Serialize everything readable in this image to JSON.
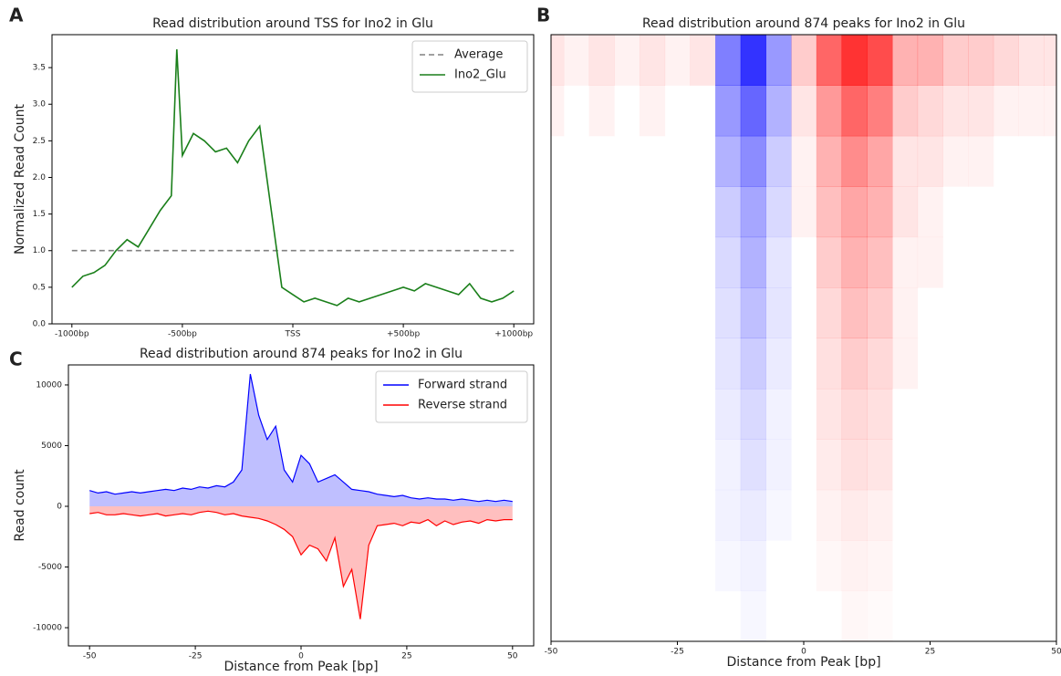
{
  "chart_data": [
    {
      "panel": "A",
      "type": "line",
      "title": "Read distribution around TSS for Ino2 in Glu",
      "ylabel": "Normalized Read Count",
      "xlim": [
        -1090,
        1090
      ],
      "ylim": [
        0,
        3.95
      ],
      "xticks": [
        {
          "value": -1000,
          "label": "-1000bp"
        },
        {
          "value": -500,
          "label": "-500bp"
        },
        {
          "value": 0,
          "label": "TSS"
        },
        {
          "value": 500,
          "label": "+500bp"
        },
        {
          "value": 1000,
          "label": "+1000bp"
        }
      ],
      "yticks": [
        {
          "value": 0,
          "label": "0.0"
        },
        0.5,
        {
          "value": 1,
          "label": "1.0"
        },
        1.5,
        {
          "value": 2,
          "label": "2.0"
        },
        2.5,
        {
          "value": 3,
          "label": "3.0"
        },
        3.5
      ],
      "legend": "upper right",
      "series": [
        {
          "name": "Average",
          "color": "#808080",
          "dashed": true,
          "x": [
            -1000,
            1000
          ],
          "values": [
            1,
            1
          ]
        },
        {
          "name": "Ino2_Glu",
          "color": "#1a7f1a",
          "dashed": false,
          "x": [
            -1000,
            -950,
            -900,
            -850,
            -800,
            -750,
            -700,
            -650,
            -600,
            -550,
            -525,
            -500,
            -450,
            -400,
            -350,
            -300,
            -250,
            -200,
            -150,
            -100,
            -50,
            0,
            50,
            100,
            150,
            200,
            250,
            300,
            350,
            400,
            450,
            500,
            550,
            600,
            650,
            700,
            750,
            800,
            850,
            900,
            950,
            1000
          ],
          "values": [
            0.5,
            0.65,
            0.7,
            0.8,
            1.0,
            1.15,
            1.05,
            1.3,
            1.55,
            1.75,
            3.75,
            2.3,
            2.6,
            2.5,
            2.35,
            2.4,
            2.2,
            2.5,
            2.7,
            1.6,
            0.5,
            0.4,
            0.3,
            0.35,
            0.3,
            0.25,
            0.35,
            0.3,
            0.35,
            0.4,
            0.45,
            0.5,
            0.45,
            0.55,
            0.5,
            0.45,
            0.4,
            0.55,
            0.35,
            0.3,
            0.35,
            0.45
          ]
        }
      ]
    },
    {
      "panel": "B",
      "type": "heatmap",
      "title": "Read distribution around 874 peaks for Ino2 in Glu",
      "xlabel": "Distance from Peak [bp]",
      "xlim": [
        -50,
        50
      ],
      "xticks": [
        -50,
        -25,
        0,
        25,
        50
      ],
      "clim": [
        -1,
        1
      ],
      "neg_color": "#0000ff",
      "pos_color": "#ff0000",
      "x": [
        -50,
        -45,
        -40,
        -35,
        -30,
        -25,
        -20,
        -15,
        -10,
        -5,
        0,
        5,
        10,
        15,
        20,
        25,
        30,
        35,
        40,
        45,
        50
      ],
      "z": [
        [
          0.1,
          0.05,
          0.1,
          0.05,
          0.1,
          0.05,
          0.1,
          -0.5,
          -0.8,
          -0.4,
          0.2,
          0.6,
          0.8,
          0.7,
          0.3,
          0.3,
          0.2,
          0.2,
          0.15,
          0.1,
          0.1
        ],
        [
          0.05,
          0,
          0.05,
          0,
          0.05,
          0,
          0,
          -0.4,
          -0.6,
          -0.3,
          0.1,
          0.4,
          0.6,
          0.5,
          0.2,
          0.15,
          0.1,
          0.1,
          0.05,
          0.05,
          0.05
        ],
        [
          0,
          0,
          0,
          0,
          0,
          0,
          0,
          -0.3,
          -0.45,
          -0.2,
          0.05,
          0.3,
          0.45,
          0.35,
          0.1,
          0.1,
          0.05,
          0.05,
          0,
          0,
          0
        ],
        [
          0,
          0,
          0,
          0,
          0,
          0,
          0,
          -0.2,
          -0.35,
          -0.15,
          0.05,
          0.25,
          0.35,
          0.3,
          0.1,
          0.05,
          0,
          0,
          0,
          0,
          0
        ],
        [
          0,
          0,
          0,
          0,
          0,
          0,
          0,
          -0.15,
          -0.3,
          -0.1,
          0,
          0.2,
          0.3,
          0.25,
          0.05,
          0.05,
          0,
          0,
          0,
          0,
          0
        ],
        [
          0,
          0,
          0,
          0,
          0,
          0,
          0,
          -0.12,
          -0.25,
          -0.1,
          0,
          0.15,
          0.25,
          0.2,
          0.05,
          0,
          0,
          0,
          0,
          0,
          0
        ],
        [
          0,
          0,
          0,
          0,
          0,
          0,
          0,
          -0.1,
          -0.2,
          -0.08,
          0,
          0.12,
          0.2,
          0.15,
          0.05,
          0,
          0,
          0,
          0,
          0,
          0
        ],
        [
          0,
          0,
          0,
          0,
          0,
          0,
          0,
          -0.08,
          -0.15,
          -0.05,
          0,
          0.1,
          0.15,
          0.12,
          0,
          0,
          0,
          0,
          0,
          0,
          0
        ],
        [
          0,
          0,
          0,
          0,
          0,
          0,
          0,
          -0.05,
          -0.12,
          -0.05,
          0,
          0.08,
          0.12,
          0.1,
          0,
          0,
          0,
          0,
          0,
          0,
          0
        ],
        [
          0,
          0,
          0,
          0,
          0,
          0,
          0,
          -0.05,
          -0.08,
          -0.03,
          0,
          0.05,
          0.08,
          0.06,
          0,
          0,
          0,
          0,
          0,
          0,
          0
        ],
        [
          0,
          0,
          0,
          0,
          0,
          0,
          0,
          -0.03,
          -0.05,
          0,
          0,
          0.03,
          0.05,
          0.04,
          0,
          0,
          0,
          0,
          0,
          0,
          0
        ],
        [
          0,
          0,
          0,
          0,
          0,
          0,
          0,
          0,
          -0.03,
          0,
          0,
          0,
          0.03,
          0.02,
          0,
          0,
          0,
          0,
          0,
          0,
          0
        ]
      ]
    },
    {
      "panel": "C",
      "type": "area",
      "title": "Read distribution around 874 peaks for Ino2 in Glu",
      "xlabel": "Distance from Peak [bp]",
      "ylabel": "Read count",
      "xlim": [
        -55,
        55
      ],
      "ylim": [
        -11500,
        11650
      ],
      "xticks": [
        -50,
        -25,
        0,
        25,
        50
      ],
      "yticks": [
        -10000,
        -5000,
        0,
        5000,
        10000
      ],
      "legend": "upper right",
      "x": [
        -50,
        -48,
        -46,
        -44,
        -42,
        -40,
        -38,
        -36,
        -34,
        -32,
        -30,
        -28,
        -26,
        -24,
        -22,
        -20,
        -18,
        -16,
        -14,
        -12,
        -10,
        -8,
        -6,
        -4,
        -2,
        0,
        2,
        4,
        6,
        8,
        10,
        12,
        14,
        16,
        18,
        20,
        22,
        24,
        26,
        28,
        30,
        32,
        34,
        36,
        38,
        40,
        42,
        44,
        46,
        48,
        50
      ],
      "series": [
        {
          "name": "Forward strand",
          "color": "#0000ff",
          "values": [
            1300,
            1100,
            1200,
            1000,
            1100,
            1200,
            1100,
            1200,
            1300,
            1400,
            1300,
            1500,
            1400,
            1600,
            1500,
            1700,
            1600,
            2000,
            3000,
            10900,
            7500,
            5500,
            6600,
            3000,
            2000,
            4200,
            3500,
            2000,
            2300,
            2600,
            2000,
            1400,
            1300,
            1200,
            1000,
            900,
            800,
            900,
            700,
            600,
            700,
            600,
            600,
            500,
            600,
            500,
            400,
            500,
            400,
            500,
            400
          ]
        },
        {
          "name": "Reverse strand",
          "color": "#ff0000",
          "values": [
            -600,
            -500,
            -700,
            -700,
            -600,
            -700,
            -800,
            -700,
            -600,
            -800,
            -700,
            -600,
            -700,
            -500,
            -400,
            -500,
            -700,
            -600,
            -800,
            -900,
            -1000,
            -1200,
            -1500,
            -1900,
            -2500,
            -4000,
            -3200,
            -3500,
            -4500,
            -2600,
            -6600,
            -5200,
            -9300,
            -3200,
            -1600,
            -1500,
            -1400,
            -1600,
            -1300,
            -1400,
            -1100,
            -1600,
            -1200,
            -1500,
            -1300,
            -1200,
            -1400,
            -1100,
            -1200,
            -1100,
            -1100
          ]
        }
      ]
    }
  ]
}
